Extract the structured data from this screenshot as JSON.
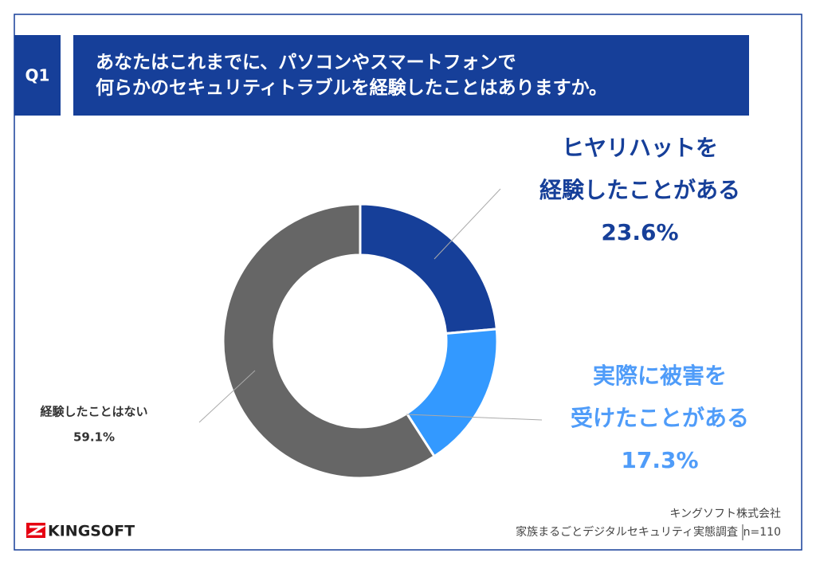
{
  "header": {
    "badge": "Q1",
    "question": [
      "あなたはこれまでに、パソコンやスマートフォンで",
      "何らかのセキュリティトラブルを経験したことはありますか。"
    ]
  },
  "chart_data": {
    "type": "pie",
    "donut": true,
    "categories": [
      [
        "ヒヤリハットを",
        "経験したことがある"
      ],
      [
        "実際に被害を",
        "受けたことがある"
      ],
      [
        "経験したことはない"
      ]
    ],
    "values": [
      23.6,
      17.3,
      59.1
    ],
    "value_labels": [
      "23.6%",
      "17.3%",
      "59.1%"
    ],
    "colors": [
      "#163f99",
      "#3399ff",
      "#666666"
    ],
    "label_colors": [
      "#163f99",
      "#4f9cf9",
      "#333333"
    ]
  },
  "footer": {
    "logo": "KINGSOFT",
    "company": "キングソフト株式会社",
    "survey": "家族まるごとデジタルセキュリティ実態調査",
    "sample": "n=110"
  }
}
